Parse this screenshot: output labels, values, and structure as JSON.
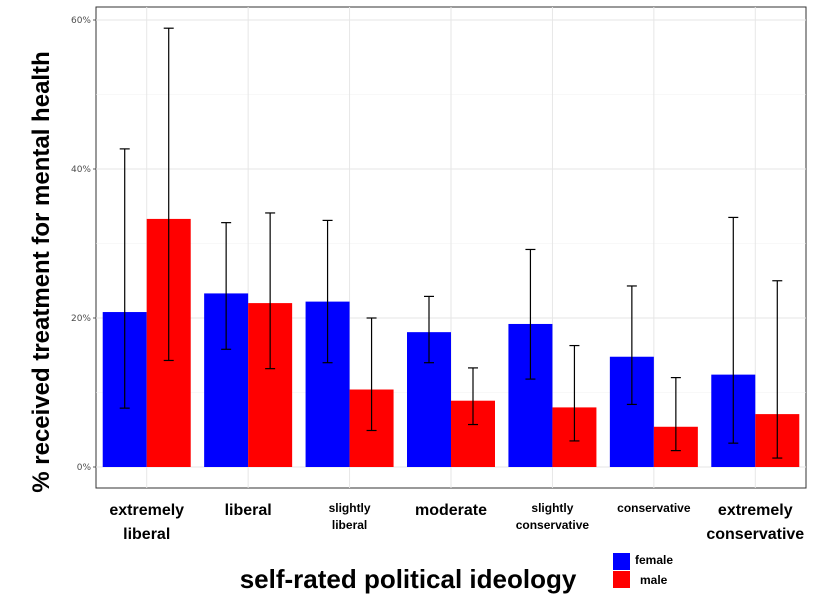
{
  "chart_data": {
    "type": "bar",
    "title": "",
    "xlabel": "self-rated political ideology",
    "ylabel": "% received treatment for mental health",
    "ylim": [
      0,
      60
    ],
    "yticks": [
      0,
      20,
      40,
      60
    ],
    "ytick_labels": [
      "0%",
      "20%",
      "40%",
      "60%"
    ],
    "grid": true,
    "legend_position": "bottom-right",
    "categories": [
      [
        "extremely",
        "liberal"
      ],
      [
        "liberal"
      ],
      [
        "slightly",
        "liberal"
      ],
      [
        "moderate"
      ],
      [
        "slightly",
        "conservative"
      ],
      [
        "conservative"
      ],
      [
        "extremely",
        "conservative"
      ]
    ],
    "category_label_sizes": [
      "large",
      "large",
      "small",
      "large",
      "small",
      "small",
      "large"
    ],
    "series": [
      {
        "name": "female",
        "color": "#0000ff",
        "values": [
          20.8,
          23.3,
          22.2,
          18.1,
          19.2,
          14.8,
          12.4
        ],
        "error_low": [
          7.9,
          15.8,
          14.0,
          14.0,
          11.8,
          8.4,
          3.2
        ],
        "error_high": [
          42.7,
          32.8,
          33.1,
          22.9,
          29.2,
          24.3,
          33.5
        ]
      },
      {
        "name": "male",
        "color": "#ff0000",
        "values": [
          33.3,
          22.0,
          10.4,
          8.9,
          8.0,
          5.4,
          7.1
        ],
        "error_low": [
          14.3,
          13.2,
          4.9,
          5.7,
          3.5,
          2.2,
          1.2
        ],
        "error_high": [
          58.9,
          34.1,
          20.0,
          13.3,
          16.3,
          12.0,
          25.0
        ]
      }
    ]
  }
}
